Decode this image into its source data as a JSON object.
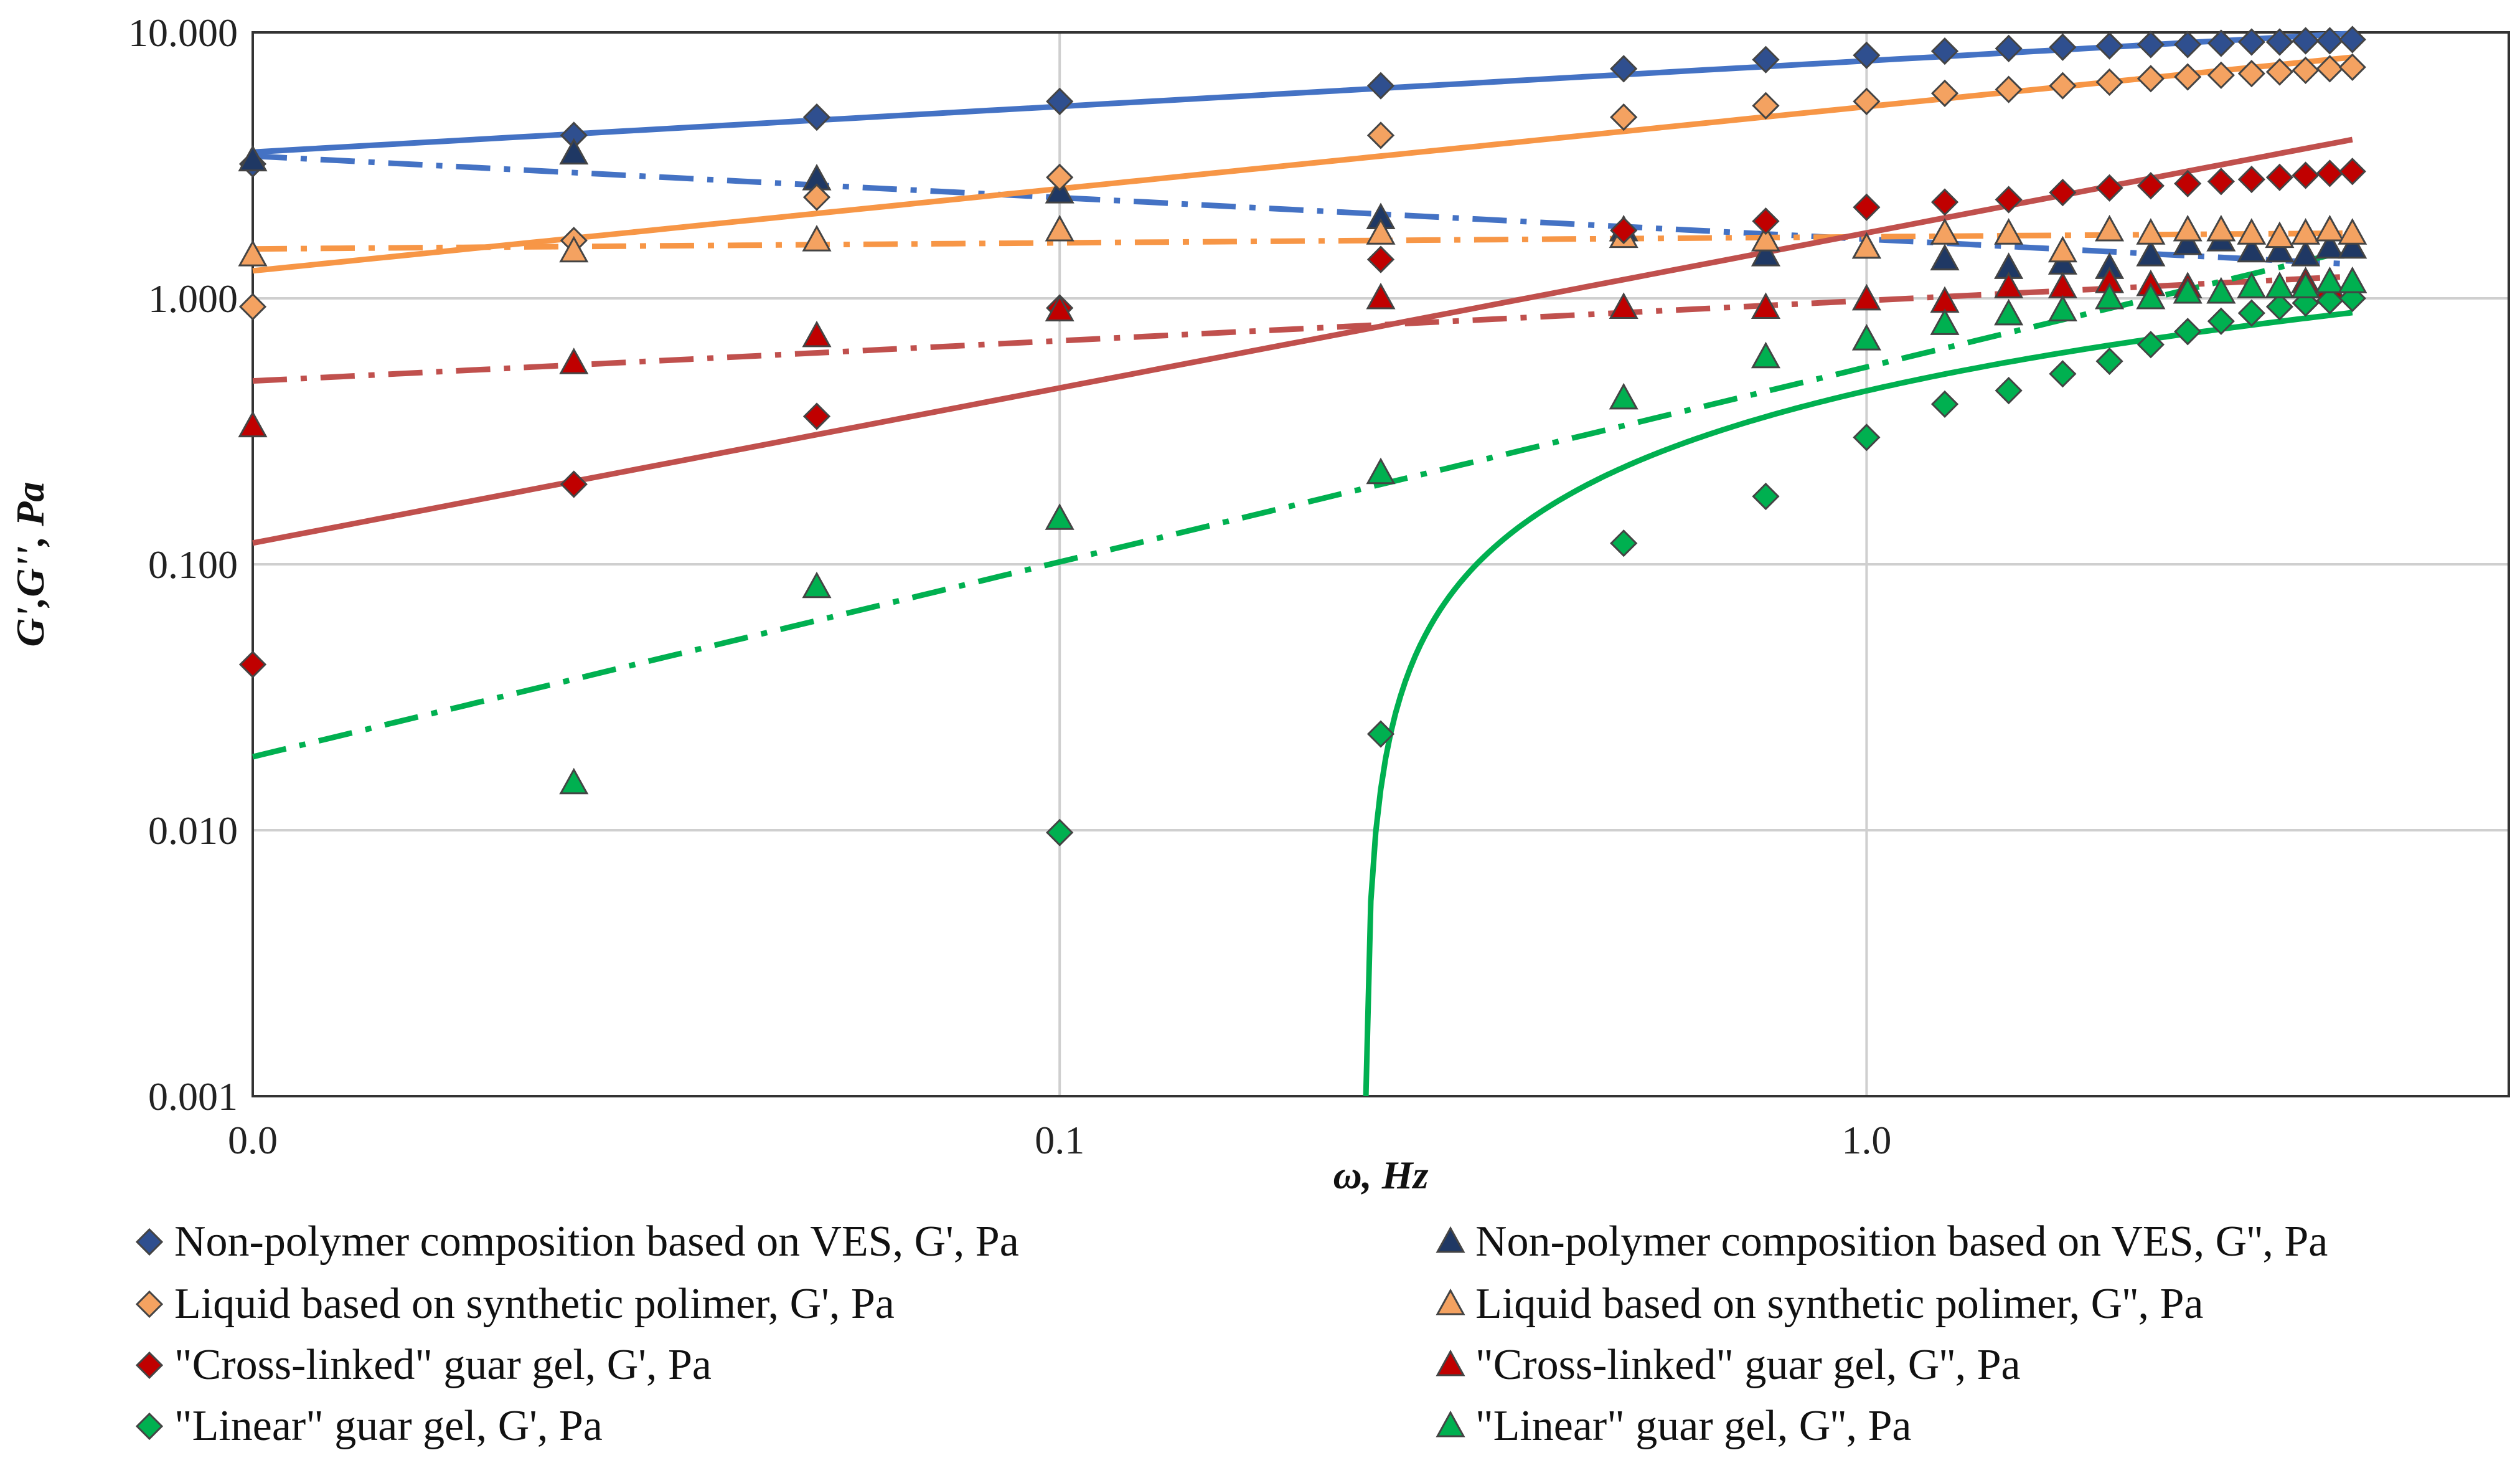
{
  "chart_data": {
    "type": "scatter",
    "title": "",
    "xlabel": "ω, Hz",
    "ylabel": "G',G'', Pa",
    "xscale": "log",
    "yscale": "log",
    "xlim": [
      0.01,
      6.25
    ],
    "ylim": [
      0.001,
      10
    ],
    "grid": true,
    "legend_position": "bottom",
    "x_ticks": [
      {
        "value": 0.01,
        "label": "0.0"
      },
      {
        "value": 0.1,
        "label": "0.1"
      },
      {
        "value": 1,
        "label": "1.0"
      }
    ],
    "y_ticks": [
      {
        "value": 0.001,
        "label": "0.001"
      },
      {
        "value": 0.01,
        "label": "0.010"
      },
      {
        "value": 0.1,
        "label": "0.100"
      },
      {
        "value": 1,
        "label": "1.000"
      },
      {
        "value": 10,
        "label": "10.000"
      }
    ],
    "x": [
      0.01,
      0.025,
      0.05,
      0.1,
      0.25,
      0.5,
      0.75,
      1.0,
      1.25,
      1.5,
      1.75,
      2.0,
      2.25,
      2.5,
      2.75,
      3.0,
      3.25,
      3.5,
      3.75,
      4.0
    ],
    "series": [
      {
        "name": "Non-polymer composition based on VES, G', Pa",
        "marker": "diamond",
        "color": "#2F4F8F",
        "fit_color": "#4472C4",
        "fit_style": "solid",
        "values": [
          3.2,
          4.1,
          4.8,
          5.5,
          6.3,
          7.3,
          7.9,
          8.2,
          8.5,
          8.7,
          8.8,
          8.9,
          9.0,
          9.0,
          9.1,
          9.2,
          9.2,
          9.3,
          9.3,
          9.4
        ]
      },
      {
        "name": "Non-polymer composition based on VES, G'', Pa",
        "marker": "triangle",
        "color": "#1F3864",
        "fit_color": "#4472C4",
        "fit_style": "dashdot",
        "values": [
          3.3,
          3.5,
          2.8,
          2.5,
          2.0,
          1.8,
          1.45,
          1.55,
          1.4,
          1.3,
          1.35,
          1.3,
          1.45,
          1.6,
          1.65,
          1.5,
          1.5,
          1.45,
          1.55,
          1.55
        ]
      },
      {
        "name": "Liquid based on synthetic polimer, G', Pa",
        "marker": "diamond",
        "color": "#F4A261",
        "fit_color": "#F79646",
        "fit_style": "solid",
        "values": [
          0.93,
          1.65,
          2.4,
          2.85,
          4.1,
          4.8,
          5.3,
          5.5,
          5.9,
          6.1,
          6.3,
          6.5,
          6.7,
          6.8,
          6.9,
          7.0,
          7.1,
          7.2,
          7.3,
          7.4
        ]
      },
      {
        "name": "Liquid based on synthetic polimer, G'', Pa",
        "marker": "triangle",
        "color": "#F4A261",
        "fit_color": "#F79646",
        "fit_style": "dashdot",
        "values": [
          1.45,
          1.5,
          1.65,
          1.8,
          1.75,
          1.7,
          1.65,
          1.55,
          1.75,
          1.75,
          1.5,
          1.8,
          1.75,
          1.8,
          1.8,
          1.75,
          1.7,
          1.75,
          1.8,
          1.75
        ]
      },
      {
        "name": "\"Cross-linked\" guar gel, G', Pa",
        "marker": "diamond",
        "color": "#C00000",
        "fit_color": "#C0504D",
        "fit_style": "solid",
        "values": [
          0.042,
          0.2,
          0.36,
          0.92,
          1.4,
          1.8,
          1.95,
          2.2,
          2.3,
          2.35,
          2.5,
          2.6,
          2.65,
          2.7,
          2.75,
          2.8,
          2.85,
          2.9,
          2.95,
          3.0
        ]
      },
      {
        "name": "\"Cross-linked\" guar gel, G'', Pa",
        "marker": "triangle",
        "color": "#C00000",
        "fit_color": "#C0504D",
        "fit_style": "dashdot",
        "values": [
          0.33,
          0.57,
          0.72,
          0.9,
          1.0,
          0.92,
          0.92,
          0.99,
          0.97,
          1.1,
          1.1,
          1.15,
          1.12,
          1.1,
          1.05,
          1.1,
          1.1,
          1.15,
          1.1,
          1.15
        ]
      },
      {
        "name": "\"Linear\" guar gel, G', Pa",
        "marker": "diamond",
        "color": "#00B050",
        "fit_color": "#00B050",
        "fit_style": "solid",
        "values": [
          null,
          null,
          null,
          0.0098,
          0.023,
          0.12,
          0.18,
          0.3,
          0.4,
          0.45,
          0.52,
          0.58,
          0.67,
          0.75,
          0.82,
          0.88,
          0.93,
          0.96,
          0.98,
          1.0
        ]
      },
      {
        "name": "\"Linear\" guar gel, G'', Pa",
        "marker": "triangle",
        "color": "#00B050",
        "fit_color": "#00B050",
        "fit_style": "dashdot",
        "values": [
          null,
          0.015,
          0.082,
          0.148,
          0.22,
          0.42,
          0.6,
          0.7,
          0.8,
          0.87,
          0.9,
          1.0,
          1.0,
          1.05,
          1.05,
          1.1,
          1.1,
          1.1,
          1.15,
          1.15
        ]
      }
    ]
  }
}
